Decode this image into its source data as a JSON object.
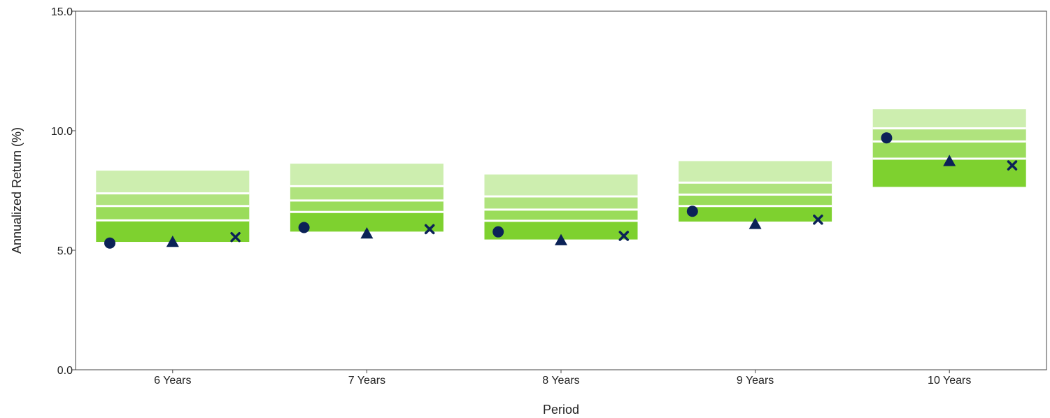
{
  "chart_data": {
    "type": "floating-bar-percentile",
    "xlabel": "Period",
    "ylabel": "Annualized Return (%)",
    "ylim": [
      0,
      15
    ],
    "yticks": [
      0,
      5,
      10,
      15
    ],
    "ytick_labels": [
      "0.0",
      "5.0",
      "10.0",
      "15.0"
    ],
    "grid": false,
    "legend": "none",
    "categories": [
      "6 Years",
      "7 Years",
      "8 Years",
      "9 Years",
      "10 Years"
    ],
    "bands": [
      {
        "bottom": 5.35,
        "q1": 6.25,
        "median": 6.85,
        "q3": 7.38,
        "top": 8.33
      },
      {
        "bottom": 5.78,
        "q1": 6.6,
        "median": 7.08,
        "q3": 7.68,
        "top": 8.62
      },
      {
        "bottom": 5.45,
        "q1": 6.23,
        "median": 6.7,
        "q3": 7.25,
        "top": 8.17
      },
      {
        "bottom": 6.2,
        "q1": 6.85,
        "median": 7.33,
        "q3": 7.83,
        "top": 8.73
      },
      {
        "bottom": 7.65,
        "q1": 8.83,
        "median": 9.55,
        "q3": 10.1,
        "top": 10.9
      }
    ],
    "series": [
      {
        "marker": "circle",
        "values": [
          5.3,
          5.95,
          5.77,
          6.63,
          9.7
        ]
      },
      {
        "marker": "triangle",
        "values": [
          5.35,
          5.7,
          5.42,
          6.1,
          8.73
        ]
      },
      {
        "marker": "x",
        "values": [
          5.55,
          5.88,
          5.6,
          6.28,
          8.55
        ]
      }
    ],
    "colors": {
      "band_top": "#cdeeaf",
      "band_upper_mid": "#b0e37e",
      "band_lower_mid": "#9adc5a",
      "band_bottom": "#7ed12f",
      "marker": "#0b2257",
      "axis": "#444444"
    }
  }
}
